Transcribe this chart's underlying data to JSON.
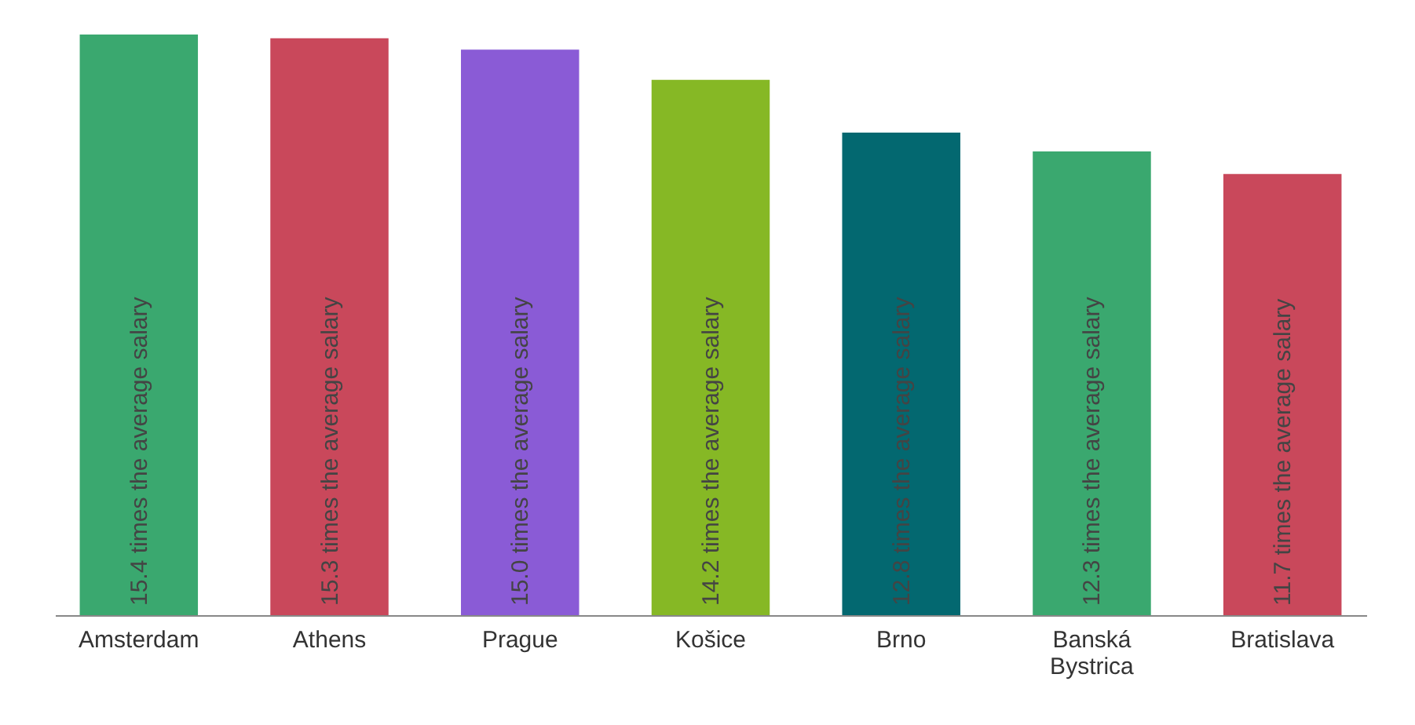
{
  "chart_data": {
    "type": "bar",
    "categories": [
      "Amsterdam",
      "Athens",
      "Prague",
      "Košice",
      "Brno",
      "Banská Bystrica",
      "Bratislava"
    ],
    "values": [
      15.4,
      15.3,
      15.0,
      14.2,
      12.8,
      12.3,
      11.7
    ],
    "colors": [
      "#3aa86f",
      "#c9485b",
      "#8a5bd6",
      "#86b825",
      "#036870",
      "#3aa86f",
      "#c9485b"
    ],
    "value_labels": [
      "15.4 times the average salary",
      "15.3 times the average salary",
      "15.0 times the average salary",
      "14.2 times the average salary",
      "12.8 times the average salary",
      "12.3 times the average salary",
      "11.7 times the average salary"
    ]
  }
}
